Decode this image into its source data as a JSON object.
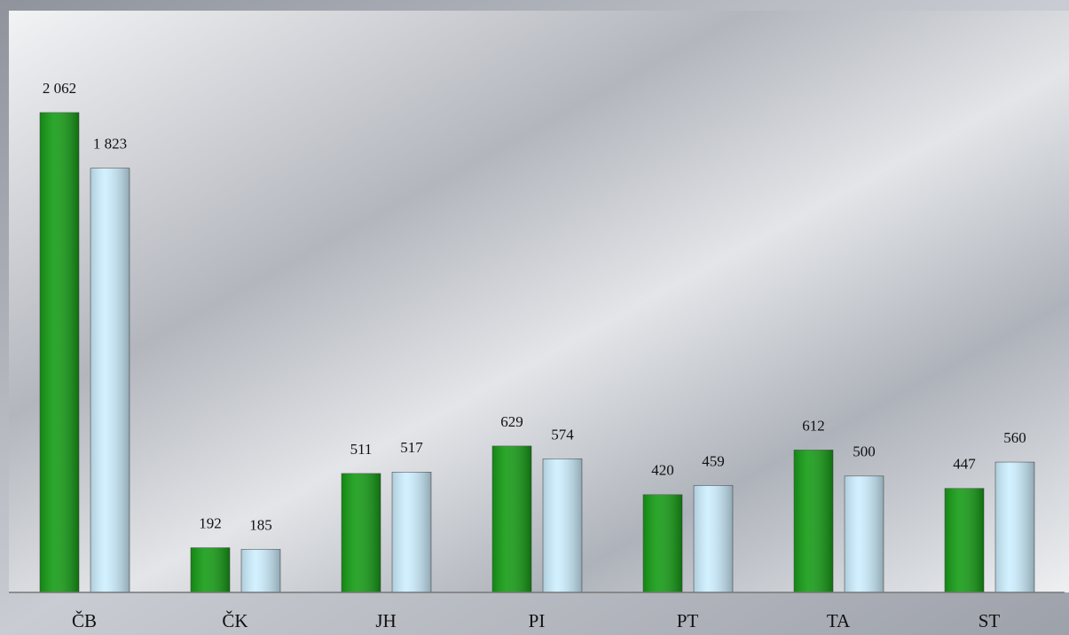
{
  "chart_data": {
    "type": "bar",
    "categories": [
      "ČB",
      "ČK",
      "JH",
      "PI",
      "PT",
      "TA",
      "ST"
    ],
    "series": [
      {
        "color": "#159c15",
        "values": [
          2062,
          192,
          511,
          629,
          420,
          612,
          447
        ],
        "value_labels": [
          "2 062",
          "192",
          "511",
          "629",
          "420",
          "612",
          "447"
        ]
      },
      {
        "color": "#cdefff",
        "values": [
          1823,
          185,
          517,
          574,
          459,
          500,
          560
        ],
        "value_labels": [
          "1 823",
          "185",
          "517",
          "574",
          "459",
          "500",
          "560"
        ]
      }
    ],
    "ylim": [
      0,
      2500
    ]
  }
}
